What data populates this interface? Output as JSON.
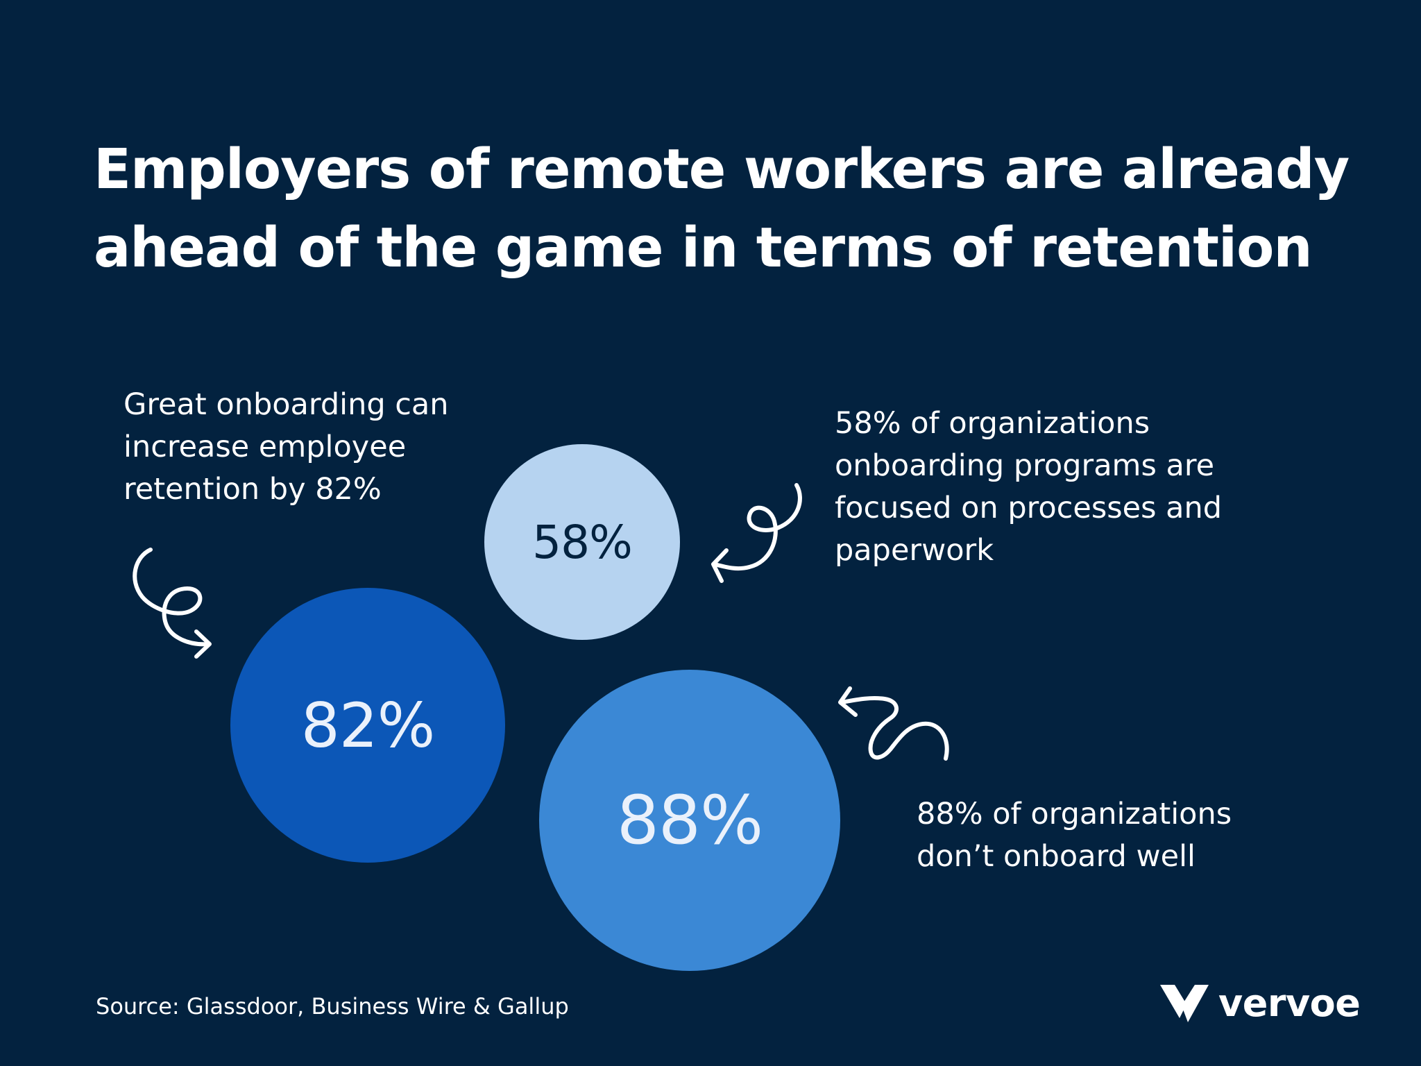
{
  "title": {
    "line1": "Employers of remote workers are already",
    "line2": "ahead of the game in terms of retention"
  },
  "stats": [
    {
      "id": "82",
      "value": "82%",
      "description_lines": [
        "Great onboarding can",
        "increase employee",
        "retention by 82%"
      ]
    },
    {
      "id": "58",
      "value": "58%",
      "description_lines": [
        "58% of organizations",
        "onboarding programs are",
        "focused on processes and",
        "paperwork"
      ]
    },
    {
      "id": "88",
      "value": "88%",
      "description_lines": [
        "88% of organizations",
        "don’t onboard well"
      ]
    }
  ],
  "colors": {
    "background": "#03223f",
    "bubble_58_fill": "#b6d3f0",
    "bubble_58_text": "#03223f",
    "bubble_82_fill": "#0c57b7",
    "bubble_82_text": "#eaf1fb",
    "bubble_88_fill": "#3b88d5",
    "bubble_88_text": "#eaf1fb",
    "text": "#ffffff"
  },
  "icons": {
    "arrow_to_82": "curly-arrow-icon",
    "arrow_to_58": "curly-arrow-icon",
    "arrow_to_88": "curly-arrow-icon",
    "logo_mark": "vervoe-v-logo-icon"
  },
  "footer": {
    "source": "Source: Glassdoor, Business Wire & Gallup",
    "brand": "vervoe"
  }
}
